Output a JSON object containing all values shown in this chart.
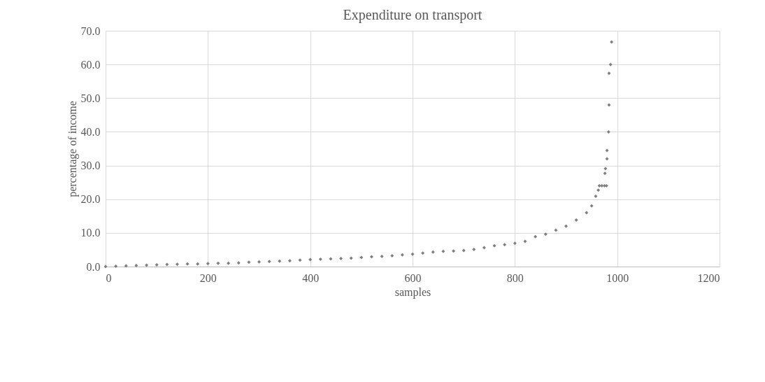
{
  "chart_data": {
    "type": "scatter",
    "title": "Expenditure on transport",
    "xlabel": "samples",
    "ylabel": "percentage of income",
    "x": [
      0,
      20,
      40,
      60,
      80,
      100,
      120,
      140,
      160,
      180,
      200,
      220,
      240,
      260,
      280,
      300,
      320,
      340,
      360,
      380,
      400,
      420,
      440,
      460,
      480,
      500,
      520,
      540,
      560,
      580,
      600,
      620,
      640,
      660,
      680,
      700,
      720,
      740,
      760,
      780,
      800,
      820,
      840,
      860,
      880,
      900,
      920,
      940,
      950,
      958,
      963,
      965,
      970,
      975,
      979,
      976,
      977,
      980,
      980,
      983,
      984,
      984,
      987,
      989
    ],
    "series": [
      {
        "color": "#7f7f7f",
        "values": [
          0.0,
          0.1,
          0.2,
          0.3,
          0.4,
          0.5,
          0.6,
          0.7,
          0.8,
          0.8,
          0.9,
          1.0,
          1.0,
          1.1,
          1.3,
          1.4,
          1.5,
          1.6,
          1.7,
          1.9,
          2.1,
          2.2,
          2.3,
          2.4,
          2.5,
          2.7,
          2.9,
          3.0,
          3.2,
          3.5,
          3.7,
          4.0,
          4.3,
          4.5,
          4.6,
          4.8,
          5.1,
          5.6,
          6.2,
          6.5,
          6.9,
          7.5,
          8.9,
          9.6,
          10.8,
          12.0,
          13.8,
          16.0,
          18.0,
          20.9,
          22.7,
          24.0,
          24.0,
          24.0,
          24.0,
          27.7,
          29.1,
          32.0,
          34.5,
          40.0,
          48.0,
          57.4,
          60.0,
          66.7
        ]
      }
    ],
    "xlim": [
      0,
      1200
    ],
    "xticks": [
      0,
      200,
      400,
      600,
      800,
      1000,
      1200
    ],
    "ylim": [
      0,
      70
    ],
    "yticks": [
      {
        "value": 0,
        "label": "0.0"
      },
      {
        "value": 10,
        "label": "10.0"
      },
      {
        "value": 20,
        "label": "20.0"
      },
      {
        "value": 30,
        "label": "30.0"
      },
      {
        "value": 40,
        "label": "40.0"
      },
      {
        "value": 50,
        "label": "50.0"
      },
      {
        "value": 60,
        "label": "60.0"
      },
      {
        "value": 70,
        "label": "70.0"
      }
    ],
    "grid": true,
    "marker": "diamond"
  }
}
